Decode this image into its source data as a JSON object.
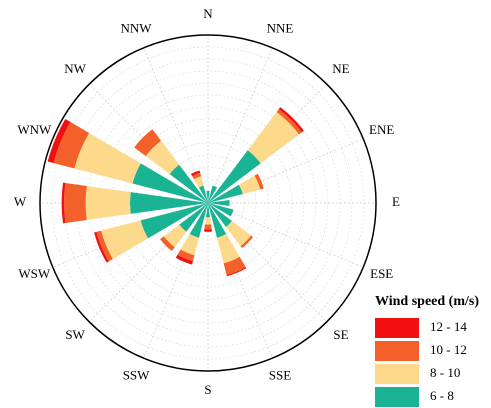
{
  "chart_data": {
    "type": "wind_rose",
    "categories": [
      "N",
      "NNE",
      "NE",
      "ENE",
      "E",
      "ESE",
      "SE",
      "SSE",
      "S",
      "SSW",
      "SW",
      "WSW",
      "W",
      "WNW",
      "NW",
      "NNW"
    ],
    "legend_title": "Wind speed (m/s)",
    "series": [
      {
        "name": "6 - 8",
        "color": "#1ab394",
        "values": [
          1,
          1.5,
          5.5,
          3,
          1.8,
          2.2,
          2.5,
          3,
          1.2,
          3,
          3,
          5.8,
          6.5,
          6.5,
          4,
          1.5
        ]
      },
      {
        "name": "8 - 10",
        "color": "#fdd98b",
        "values": [
          0,
          0,
          4,
          1.5,
          0,
          0,
          2,
          2.2,
          0.6,
          1.5,
          1.6,
          3.4,
          3.7,
          5,
          2.5,
          0.8
        ]
      },
      {
        "name": "10 - 12",
        "color": "#f4602a",
        "values": [
          0,
          0,
          0.3,
          0.3,
          0,
          0,
          0.2,
          1,
          0.4,
          0.5,
          0.4,
          0.4,
          1.8,
          1.8,
          1.2,
          0.3
        ]
      },
      {
        "name": "12 - 14",
        "color": "#f01010",
        "values": [
          0,
          0,
          0.2,
          0,
          0,
          0,
          0,
          0.1,
          0.2,
          0.3,
          0,
          0.2,
          0.2,
          0.5,
          0,
          0.2
        ]
      }
    ],
    "rlim": [
      0,
      14
    ],
    "rticks": [
      1,
      2,
      3,
      4,
      5,
      6,
      7,
      8,
      9,
      10,
      11,
      12,
      13,
      14
    ],
    "grid": true
  }
}
